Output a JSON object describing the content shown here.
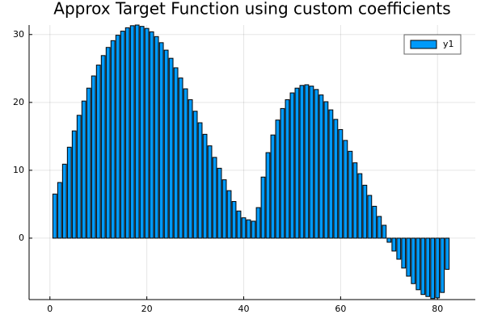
{
  "chart_data": {
    "type": "bar",
    "title": "Approx Target Function using custom coefficients",
    "x": [
      1,
      2,
      3,
      4,
      5,
      6,
      7,
      8,
      9,
      10,
      11,
      12,
      13,
      14,
      15,
      16,
      17,
      18,
      19,
      20,
      21,
      22,
      23,
      24,
      25,
      26,
      27,
      28,
      29,
      30,
      31,
      32,
      33,
      34,
      35,
      36,
      37,
      38,
      39,
      40,
      41,
      42,
      43,
      44,
      45,
      46,
      47,
      48,
      49,
      50,
      51,
      52,
      53,
      54,
      55,
      56,
      57,
      58,
      59,
      60,
      61,
      62,
      63,
      64,
      65,
      66,
      67,
      68,
      69,
      70,
      71,
      72,
      73,
      74,
      75,
      76,
      77,
      78,
      79,
      80,
      81,
      82
    ],
    "series": [
      {
        "name": "y1",
        "color": "#009af9",
        "values": [
          6.5,
          8.2,
          10.9,
          13.4,
          15.8,
          18.1,
          20.2,
          22.1,
          23.9,
          25.5,
          26.9,
          28.1,
          29.1,
          29.9,
          30.5,
          31.0,
          31.3,
          31.4,
          31.2,
          30.9,
          30.4,
          29.7,
          28.8,
          27.7,
          26.5,
          25.1,
          23.6,
          22.0,
          20.4,
          18.7,
          17.0,
          15.3,
          13.6,
          11.9,
          10.3,
          8.6,
          7.0,
          5.4,
          4.0,
          3.0,
          2.7,
          2.5,
          4.5,
          9.0,
          12.6,
          15.2,
          17.4,
          19.1,
          20.4,
          21.4,
          22.1,
          22.5,
          22.6,
          22.4,
          21.9,
          21.1,
          20.1,
          18.9,
          17.5,
          16.0,
          14.4,
          12.8,
          11.1,
          9.5,
          7.8,
          6.3,
          4.7,
          3.2,
          1.9,
          -0.6,
          -1.9,
          -3.1,
          -4.4,
          -5.6,
          -6.7,
          -7.6,
          -8.3,
          -8.6,
          -8.9,
          -8.8,
          -8.0,
          -4.6
        ]
      }
    ],
    "xlim": [
      -4.3,
      87.8
    ],
    "xticks": [
      0,
      20,
      40,
      60,
      80
    ],
    "ylim": [
      -9.05,
      31.4
    ],
    "yticks": [
      0,
      10,
      20,
      30
    ],
    "grid": true,
    "legend": "top-right"
  }
}
